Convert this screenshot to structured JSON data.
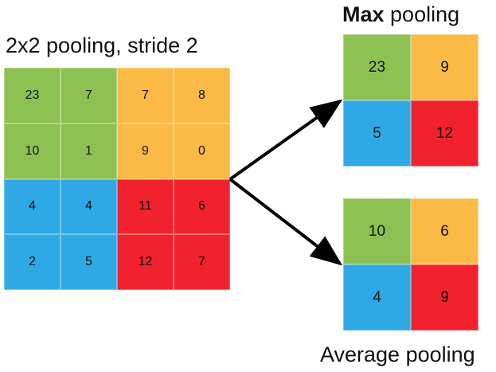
{
  "titles": {
    "input": "2x2 pooling, stride 2",
    "max_bold": "Max",
    "max_rest": " pooling",
    "average": "Average pooling"
  },
  "colors": {
    "green": "#8cc152",
    "orange": "#fbb946",
    "blue": "#2ea9e6",
    "red": "#f1222d"
  },
  "input_grid": [
    [
      "23",
      "7",
      "7",
      "8"
    ],
    [
      "10",
      "1",
      "9",
      "0"
    ],
    [
      "4",
      "4",
      "11",
      "6"
    ],
    [
      "2",
      "5",
      "12",
      "7"
    ]
  ],
  "max_grid": [
    [
      "23",
      "9"
    ],
    [
      "5",
      "12"
    ]
  ],
  "avg_grid": [
    [
      "10",
      "6"
    ],
    [
      "4",
      "9"
    ]
  ]
}
